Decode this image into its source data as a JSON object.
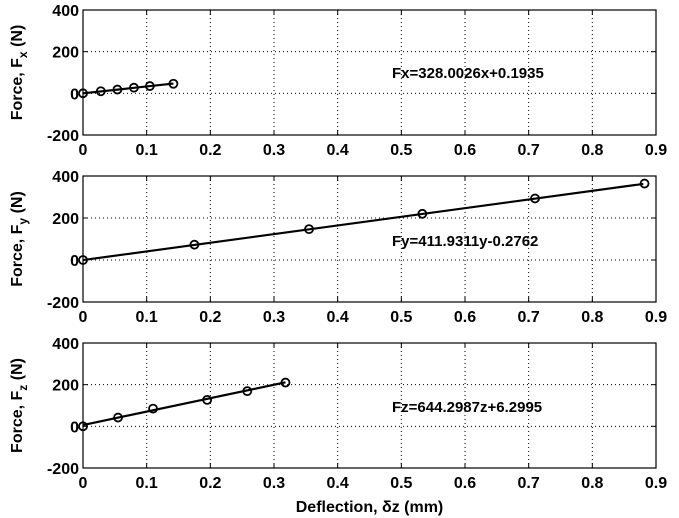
{
  "chart_data": [
    {
      "type": "scatter",
      "subplot": "top",
      "ylabel": "Force, F",
      "ylabel_sub": "x",
      "ylabel_unit": " (N)",
      "xlim": [
        0,
        0.9
      ],
      "ylim": [
        -200,
        400
      ],
      "xticks": [
        "0",
        "0.1",
        "0.2",
        "0.3",
        "0.4",
        "0.5",
        "0.6",
        "0.7",
        "0.8",
        "0.9"
      ],
      "yticks": [
        "-200",
        "0",
        "200",
        "400"
      ],
      "grid": true,
      "equation": "Fx=328.0026x+0.1935",
      "fit": {
        "slope": 328.0026,
        "intercept": 0.1935,
        "x_range": [
          0,
          0.142
        ]
      },
      "x": [
        0,
        0.028,
        0.054,
        0.08,
        0.105,
        0.142
      ],
      "y": [
        0,
        10,
        18,
        27,
        35,
        46
      ]
    },
    {
      "type": "scatter",
      "subplot": "middle",
      "ylabel": "Force, F",
      "ylabel_sub": "y",
      "ylabel_unit": " (N)",
      "xlim": [
        0,
        0.9
      ],
      "ylim": [
        -200,
        400
      ],
      "xticks": [
        "0",
        "0.1",
        "0.2",
        "0.3",
        "0.4",
        "0.5",
        "0.6",
        "0.7",
        "0.8",
        "0.9"
      ],
      "yticks": [
        "-200",
        "0",
        "200",
        "400"
      ],
      "grid": true,
      "equation": "Fy=411.9311y-0.2762",
      "fit": {
        "slope": 411.9311,
        "intercept": -0.2762,
        "x_range": [
          0,
          0.88
        ]
      },
      "x": [
        0,
        0.175,
        0.355,
        0.533,
        0.71,
        0.882
      ],
      "y": [
        0,
        73,
        147,
        220,
        293,
        364
      ]
    },
    {
      "type": "scatter",
      "subplot": "bottom",
      "ylabel": "Force, F",
      "ylabel_sub": "z",
      "ylabel_unit": " (N)",
      "xlabel": "Deflection, δz (mm)",
      "xlim": [
        0,
        0.9
      ],
      "ylim": [
        -200,
        400
      ],
      "xticks": [
        "0",
        "0.1",
        "0.2",
        "0.3",
        "0.4",
        "0.5",
        "0.6",
        "0.7",
        "0.8",
        "0.9"
      ],
      "yticks": [
        "-200",
        "0",
        "200",
        "400"
      ],
      "grid": true,
      "equation": "Fz=644.2987z+6.2995",
      "fit": {
        "slope": 644.2987,
        "intercept": 6.2995,
        "x_range": [
          0,
          0.318
        ]
      },
      "x": [
        0,
        0.055,
        0.11,
        0.195,
        0.258,
        0.318
      ],
      "y": [
        0,
        42,
        85,
        127,
        169,
        210
      ]
    }
  ]
}
